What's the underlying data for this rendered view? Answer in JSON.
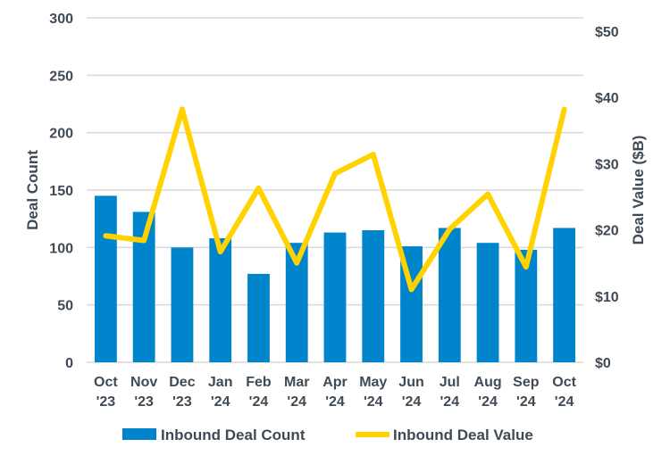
{
  "chart_data": {
    "type": "bar+line",
    "categories": [
      [
        "Oct",
        "'23"
      ],
      [
        "Nov",
        "'23"
      ],
      [
        "Dec",
        "'23"
      ],
      [
        "Jan",
        "'24"
      ],
      [
        "Feb",
        "'24"
      ],
      [
        "Mar",
        "'24"
      ],
      [
        "Apr",
        "'24"
      ],
      [
        "May",
        "'24"
      ],
      [
        "Jun",
        "'24"
      ],
      [
        "Jul",
        "'24"
      ],
      [
        "Aug",
        "'24"
      ],
      [
        "Sep",
        "'24"
      ],
      [
        "Oct",
        "'24"
      ]
    ],
    "series": [
      {
        "name": "Inbound Deal Count",
        "type": "bar",
        "axis": "left",
        "color": "#0084cc",
        "values": [
          145,
          131,
          100,
          108,
          77,
          104,
          113,
          115,
          101,
          117,
          104,
          98,
          117
        ]
      },
      {
        "name": "Inbound Deal Value",
        "type": "line",
        "axis": "right",
        "color": "#ffd200",
        "values": [
          19.1,
          18.4,
          38.2,
          16.7,
          26.3,
          15.0,
          28.5,
          31.4,
          11.0,
          20.1,
          25.4,
          14.4,
          38.2
        ]
      }
    ],
    "ylabel": "Deal Count",
    "y2label": "Deal Value ($B)",
    "ylim": [
      0,
      300
    ],
    "y2lim": [
      0,
      50
    ],
    "yticks": [
      "0",
      "50",
      "100",
      "150",
      "200",
      "250",
      "300"
    ],
    "y2ticks": [
      "$0",
      "$10",
      "$20",
      "$30",
      "$40",
      "$50"
    ],
    "grid": true,
    "legend": "bottom"
  }
}
